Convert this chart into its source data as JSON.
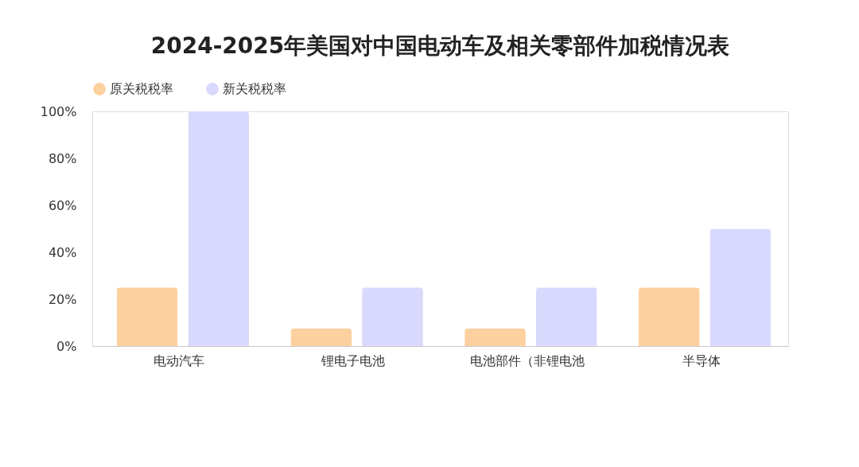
{
  "chart_data": {
    "type": "bar",
    "title": "2024-2025年美国对中国电动车及相关零部件加税情况表",
    "categories": [
      "电动汽车",
      "锂电子电池",
      "电池部件（非锂电池",
      "半导体"
    ],
    "series": [
      {
        "name": "原关税税率",
        "color": "#fdd09f",
        "values": [
          25,
          7.5,
          7.5,
          25
        ]
      },
      {
        "name": "新关税税率",
        "color": "#d9d9fd",
        "values": [
          100,
          25,
          25,
          50
        ]
      }
    ],
    "ylim": [
      0,
      100
    ],
    "yticks": [
      {
        "value": 0,
        "label": "0%"
      },
      {
        "value": 20,
        "label": "20%"
      },
      {
        "value": 40,
        "label": "40%"
      },
      {
        "value": 60,
        "label": "60%"
      },
      {
        "value": 80,
        "label": "80%"
      },
      {
        "value": 100,
        "label": "100%"
      }
    ],
    "grid": false,
    "legend": "top"
  }
}
